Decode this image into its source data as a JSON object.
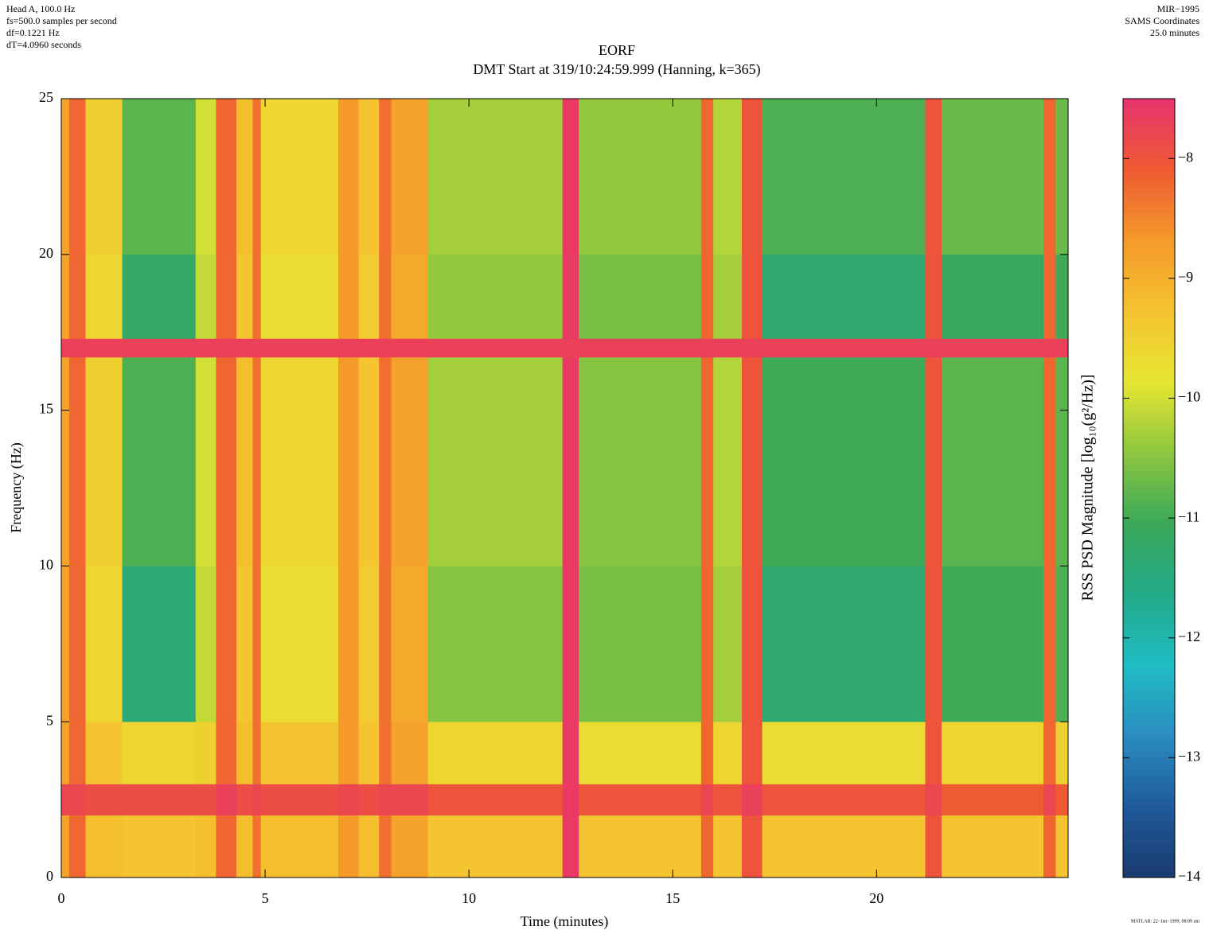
{
  "chart_data": {
    "type": "heatmap",
    "header_left": [
      "Head A, 100.0 Hz",
      "fs=500.0 samples per second",
      "df=0.1221 Hz",
      "dT=4.0960 seconds"
    ],
    "header_right": [
      "MIR−1995",
      "SAMS Coordinates",
      "25.0 minutes"
    ],
    "title": "EORF",
    "subtitle": "DMT Start at 319/10:24:59.999 (Hanning, k=365)",
    "x_label": "Time (minutes)",
    "y_label": "Frequency (Hz)",
    "colorbar_label": "RSS PSD Magnitude [log₁₀(g²/Hz)]",
    "footer": "MATLAB: 22−Jan−1999, 08:09 am",
    "xlim": [
      0,
      24.7
    ],
    "xticks": [
      0,
      5,
      10,
      15,
      20
    ],
    "ylim": [
      0,
      25
    ],
    "yticks": [
      0,
      5,
      10,
      15,
      20,
      25
    ],
    "clim": [
      -14,
      -7.5
    ],
    "cticks": [
      {
        "value": -14,
        "label": "−14"
      },
      {
        "value": -13,
        "label": "−13"
      },
      {
        "value": -12,
        "label": "−12"
      },
      {
        "value": -11,
        "label": "−11"
      },
      {
        "value": -10,
        "label": "−10"
      },
      {
        "value": -9,
        "label": "−9"
      },
      {
        "value": -8,
        "label": "−8"
      }
    ],
    "colormap": [
      "#1a3a6e",
      "#1f5a9a",
      "#2a8cc0",
      "#1fbcc4",
      "#22aa88",
      "#3aa85a",
      "#8cc63f",
      "#e6e633",
      "#f5c330",
      "#f49a2a",
      "#ee5a32",
      "#e8336e"
    ],
    "x_edges": [
      0,
      0.2,
      0.6,
      1.5,
      3.3,
      3.8,
      4.3,
      4.7,
      4.9,
      6.8,
      7.3,
      7.8,
      8.1,
      9.0,
      12.3,
      12.7,
      15.7,
      16.0,
      16.7,
      17.2,
      21.2,
      21.6,
      24.1,
      24.4,
      24.7
    ],
    "y_edges": [
      0,
      2,
      3,
      5,
      10,
      16.7,
      17.3,
      20,
      25
    ],
    "z": [
      [
        -8.8,
        -8.2,
        -9.2,
        -9.3,
        -9.2,
        -8.2,
        -9.2,
        -8.3,
        -9.2,
        -8.7,
        -9.2,
        -8.3,
        -8.8,
        -9.3,
        -7.6,
        -9.3,
        -8.2,
        -9.3,
        -8.0,
        -9.3,
        -8.0,
        -9.3,
        -8.2,
        -9.3
      ],
      [
        -7.8,
        -7.8,
        -7.9,
        -7.9,
        -7.9,
        -7.7,
        -7.9,
        -7.8,
        -7.9,
        -7.8,
        -7.9,
        -7.8,
        -7.8,
        -8.0,
        -7.6,
        -8.0,
        -7.8,
        -8.0,
        -7.7,
        -8.0,
        -7.8,
        -8.1,
        -7.8,
        -8.1
      ],
      [
        -8.8,
        -8.2,
        -9.3,
        -9.6,
        -9.5,
        -8.2,
        -9.2,
        -8.3,
        -9.3,
        -8.7,
        -9.3,
        -8.3,
        -8.8,
        -9.6,
        -7.6,
        -9.7,
        -8.2,
        -9.6,
        -8.0,
        -9.7,
        -8.0,
        -9.6,
        -8.2,
        -9.5
      ],
      [
        -8.8,
        -8.2,
        -9.6,
        -11.4,
        -10.1,
        -8.2,
        -9.3,
        -8.3,
        -9.7,
        -8.7,
        -9.4,
        -8.3,
        -8.9,
        -10.5,
        -7.6,
        -10.6,
        -8.2,
        -10.3,
        -8.0,
        -11.3,
        -8.0,
        -11.0,
        -8.2,
        -10.9
      ],
      [
        -8.8,
        -8.2,
        -9.5,
        -10.9,
        -10.0,
        -8.2,
        -9.2,
        -8.3,
        -9.6,
        -8.7,
        -9.3,
        -8.3,
        -8.8,
        -10.3,
        -7.6,
        -10.5,
        -8.2,
        -10.2,
        -8.0,
        -11.0,
        -8.0,
        -10.8,
        -8.2,
        -10.8
      ],
      [
        -7.7,
        -7.7,
        -7.7,
        -7.7,
        -7.7,
        -7.7,
        -7.7,
        -7.7,
        -7.7,
        -7.7,
        -7.7,
        -7.7,
        -7.7,
        -7.7,
        -7.7,
        -7.7,
        -7.7,
        -7.7,
        -7.7,
        -7.7,
        -7.7,
        -7.7,
        -7.7,
        -7.7
      ],
      [
        -8.8,
        -8.2,
        -9.6,
        -11.2,
        -10.1,
        -8.2,
        -9.3,
        -8.3,
        -9.7,
        -8.7,
        -9.4,
        -8.3,
        -8.9,
        -10.4,
        -7.6,
        -10.6,
        -8.2,
        -10.3,
        -8.0,
        -11.3,
        -8.0,
        -11.1,
        -8.2,
        -11.0
      ],
      [
        -8.8,
        -8.2,
        -9.5,
        -10.8,
        -10.0,
        -8.2,
        -9.2,
        -8.3,
        -9.6,
        -8.7,
        -9.3,
        -8.3,
        -8.8,
        -10.3,
        -7.6,
        -10.4,
        -8.2,
        -10.2,
        -8.0,
        -10.9,
        -8.0,
        -10.7,
        -8.2,
        -10.7
      ]
    ]
  }
}
